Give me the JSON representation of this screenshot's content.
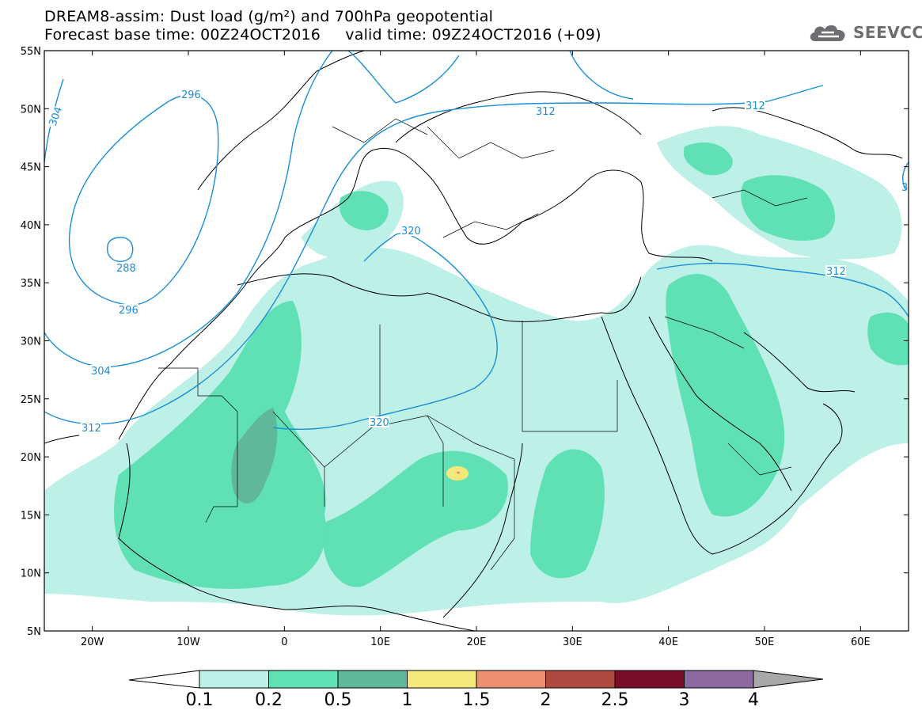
{
  "title": {
    "line1": "DREAM8-assim: Dust load (g/m²) and 700hPa geopotential",
    "line2": "Forecast base time: 00Z24OCT2016     valid time: 09Z24OCT2016 (+09)"
  },
  "logo": {
    "text": "SEEVCCC",
    "icon": "cloud-icon"
  },
  "axes": {
    "lat_labels": [
      "55N",
      "50N",
      "45N",
      "40N",
      "35N",
      "30N",
      "25N",
      "20N",
      "15N",
      "10N",
      "5N"
    ],
    "lon_labels": [
      "20W",
      "10W",
      "0",
      "10E",
      "20E",
      "30E",
      "40E",
      "50E",
      "60E"
    ],
    "lon_range": [
      -25,
      65
    ],
    "lat_range": [
      5,
      55
    ]
  },
  "contours": {
    "labels": [
      "296",
      "304",
      "288",
      "296",
      "304",
      "312",
      "312",
      "320",
      "320",
      "312",
      "312",
      "3"
    ],
    "color": "#1a8fd8"
  },
  "colorbar": {
    "labels": [
      "0.1",
      "0.2",
      "0.5",
      "1",
      "1.5",
      "2",
      "2.5",
      "3",
      "4"
    ],
    "colors": [
      "#bdf0e6",
      "#5fe0b5",
      "#5fb898",
      "#f5e87a",
      "#eb9070",
      "#b04a40",
      "#7a0e2a",
      "#8c6aa0",
      "#a8a8a8"
    ]
  },
  "chart_data": {
    "type": "heatmap",
    "title": "DREAM8-assim: Dust load (g/m²) and 700hPa geopotential",
    "xlim": [
      -25,
      65
    ],
    "ylim": [
      5,
      55
    ],
    "variable": "Dust load (g/m²)",
    "levels": [
      0.1,
      0.2,
      0.5,
      1,
      1.5,
      2,
      2.5,
      3,
      4
    ],
    "geopotential_contours": [
      288,
      296,
      304,
      312,
      320
    ]
  }
}
